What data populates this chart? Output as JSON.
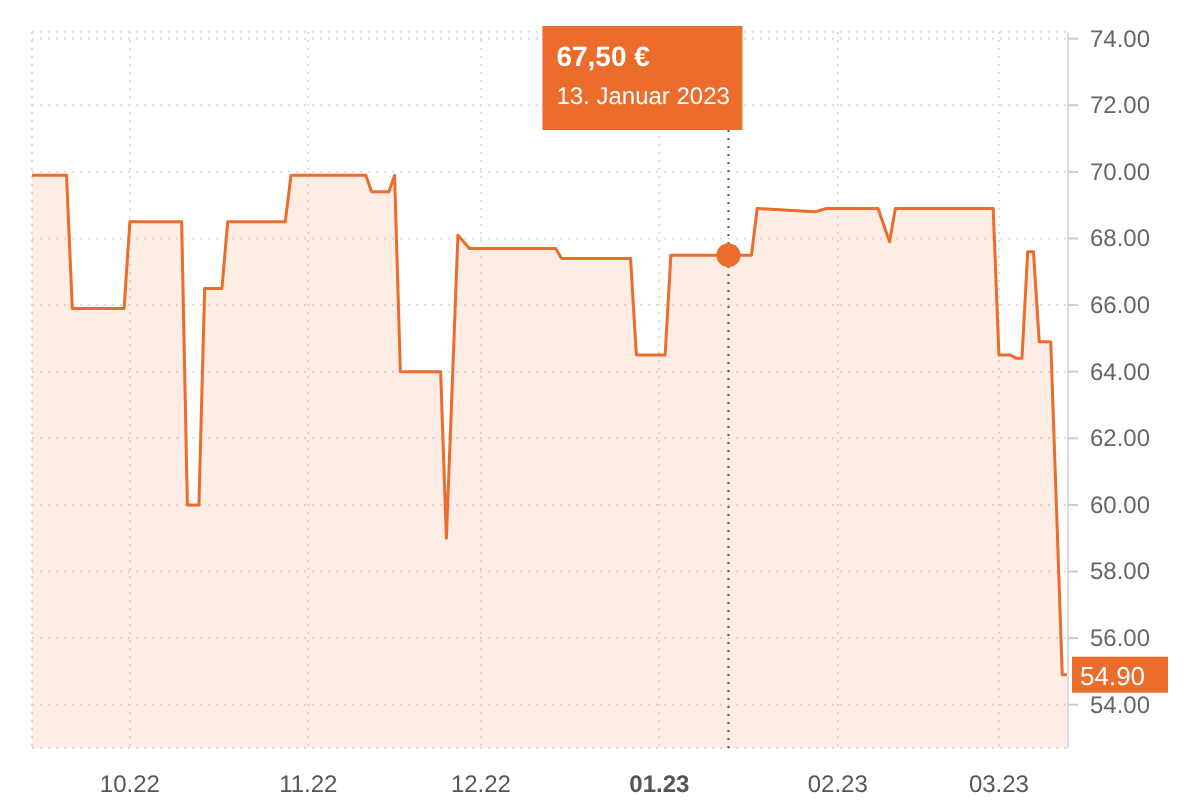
{
  "chart_data": {
    "type": "area",
    "x": [
      "2022-09-14",
      "2022-09-20",
      "2022-09-21",
      "2022-09-30",
      "2022-10-01",
      "2022-10-10",
      "2022-10-11",
      "2022-10-13",
      "2022-10-14",
      "2022-10-17",
      "2022-10-18",
      "2022-10-28",
      "2022-10-29",
      "2022-11-11",
      "2022-11-12",
      "2022-11-15",
      "2022-11-16",
      "2022-11-17",
      "2022-11-24",
      "2022-11-25",
      "2022-11-27",
      "2022-11-29",
      "2022-12-14",
      "2022-12-15",
      "2022-12-27",
      "2022-12-28",
      "2023-01-02",
      "2023-01-03",
      "2023-01-13",
      "2023-01-17",
      "2023-01-18",
      "2023-01-28",
      "2023-01-30",
      "2023-02-08",
      "2023-02-10",
      "2023-02-11",
      "2023-02-28",
      "2023-03-01",
      "2023-03-03",
      "2023-03-04",
      "2023-03-05",
      "2023-03-06",
      "2023-03-07",
      "2023-03-08",
      "2023-03-10",
      "2023-03-12",
      "2023-03-13"
    ],
    "series": [
      {
        "color": "#ec6c2c",
        "values": [
          69.9,
          69.9,
          65.9,
          65.9,
          68.5,
          68.5,
          60.0,
          60.0,
          66.5,
          66.5,
          68.5,
          68.5,
          69.9,
          69.9,
          69.4,
          69.4,
          69.9,
          64.0,
          64.0,
          59.0,
          68.1,
          67.7,
          67.7,
          67.4,
          67.4,
          64.5,
          64.5,
          67.5,
          67.5,
          67.5,
          68.9,
          68.8,
          68.9,
          68.9,
          67.9,
          68.9,
          68.9,
          64.5,
          64.5,
          64.4,
          64.4,
          67.6,
          67.6,
          64.9,
          64.9,
          54.9,
          54.9
        ]
      }
    ],
    "xlim": [
      "2022-09-14",
      "2023-03-13"
    ],
    "xticks": [
      {
        "value": "2022-10-01",
        "label": "10.22"
      },
      {
        "value": "2022-11-01",
        "label": "11.22"
      },
      {
        "value": "2022-12-01",
        "label": "12.22"
      },
      {
        "value": "2023-01-01",
        "label": "01.23"
      },
      {
        "value": "2023-02-01",
        "label": "02.23"
      },
      {
        "value": "2023-03-01",
        "label": "03.23"
      }
    ],
    "ylim": [
      52.7,
      74.2
    ],
    "yticks": [
      {
        "value": 54,
        "label": "54.00"
      },
      {
        "value": 56,
        "label": "56.00"
      },
      {
        "value": 58,
        "label": "58.00"
      },
      {
        "value": 60,
        "label": "60.00"
      },
      {
        "value": 62,
        "label": "62.00"
      },
      {
        "value": 64,
        "label": "64.00"
      },
      {
        "value": 66,
        "label": "66.00"
      },
      {
        "value": 68,
        "label": "68.00"
      },
      {
        "value": 70,
        "label": "70.00"
      },
      {
        "value": 72,
        "label": "72.00"
      },
      {
        "value": 74,
        "label": "74.00"
      }
    ],
    "grid": true,
    "marker": "none",
    "line_style": "solid",
    "ref_lines": [
      {
        "axis": "x",
        "value": "2023-01-13",
        "color": "#555555",
        "line_style": "dotted"
      }
    ],
    "annotations": [
      "67,50 €\n13. Januar 2023",
      "54.90"
    ]
  }
}
